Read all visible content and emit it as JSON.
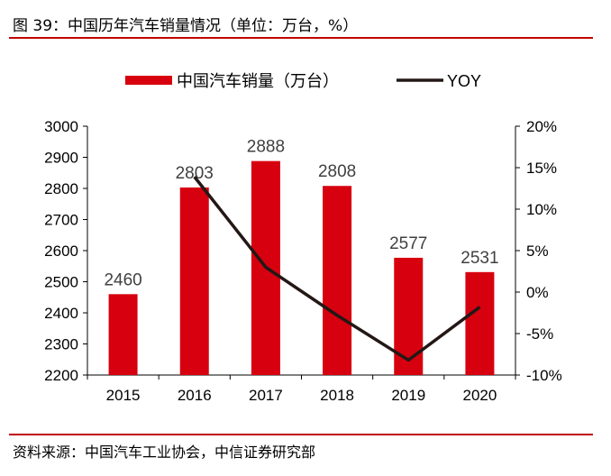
{
  "header": {
    "title": "图 39：中国历年汽车销量情况（单位：万台，%）"
  },
  "footer": {
    "source": "资料来源：中国汽车工业协会，中信证券研究部"
  },
  "chart_data": {
    "type": "bar+line",
    "categories": [
      "2015",
      "2016",
      "2017",
      "2018",
      "2019",
      "2020"
    ],
    "series": [
      {
        "name": "中国汽车销量（万台）",
        "type": "bar",
        "axis": "left",
        "color": "#d7000f",
        "values": [
          2460,
          2803,
          2888,
          2808,
          2577,
          2531
        ],
        "labels": [
          "2460",
          "2803",
          "2888",
          "2808",
          "2577",
          "2531"
        ]
      },
      {
        "name": "YOY",
        "type": "line",
        "axis": "right",
        "color": "#231815",
        "values": [
          null,
          13.9,
          3.0,
          -2.8,
          -8.2,
          -1.8
        ]
      }
    ],
    "left_axis": {
      "ylim": [
        2200,
        3000
      ],
      "ticks": [
        "2200",
        "2300",
        "2400",
        "2500",
        "2600",
        "2700",
        "2800",
        "2900",
        "3000"
      ]
    },
    "right_axis": {
      "ylim": [
        -10,
        20
      ],
      "ticks": [
        "-10%",
        "-5%",
        "0%",
        "5%",
        "10%",
        "15%",
        "20%"
      ]
    },
    "legend": "top-center",
    "grid": false
  }
}
